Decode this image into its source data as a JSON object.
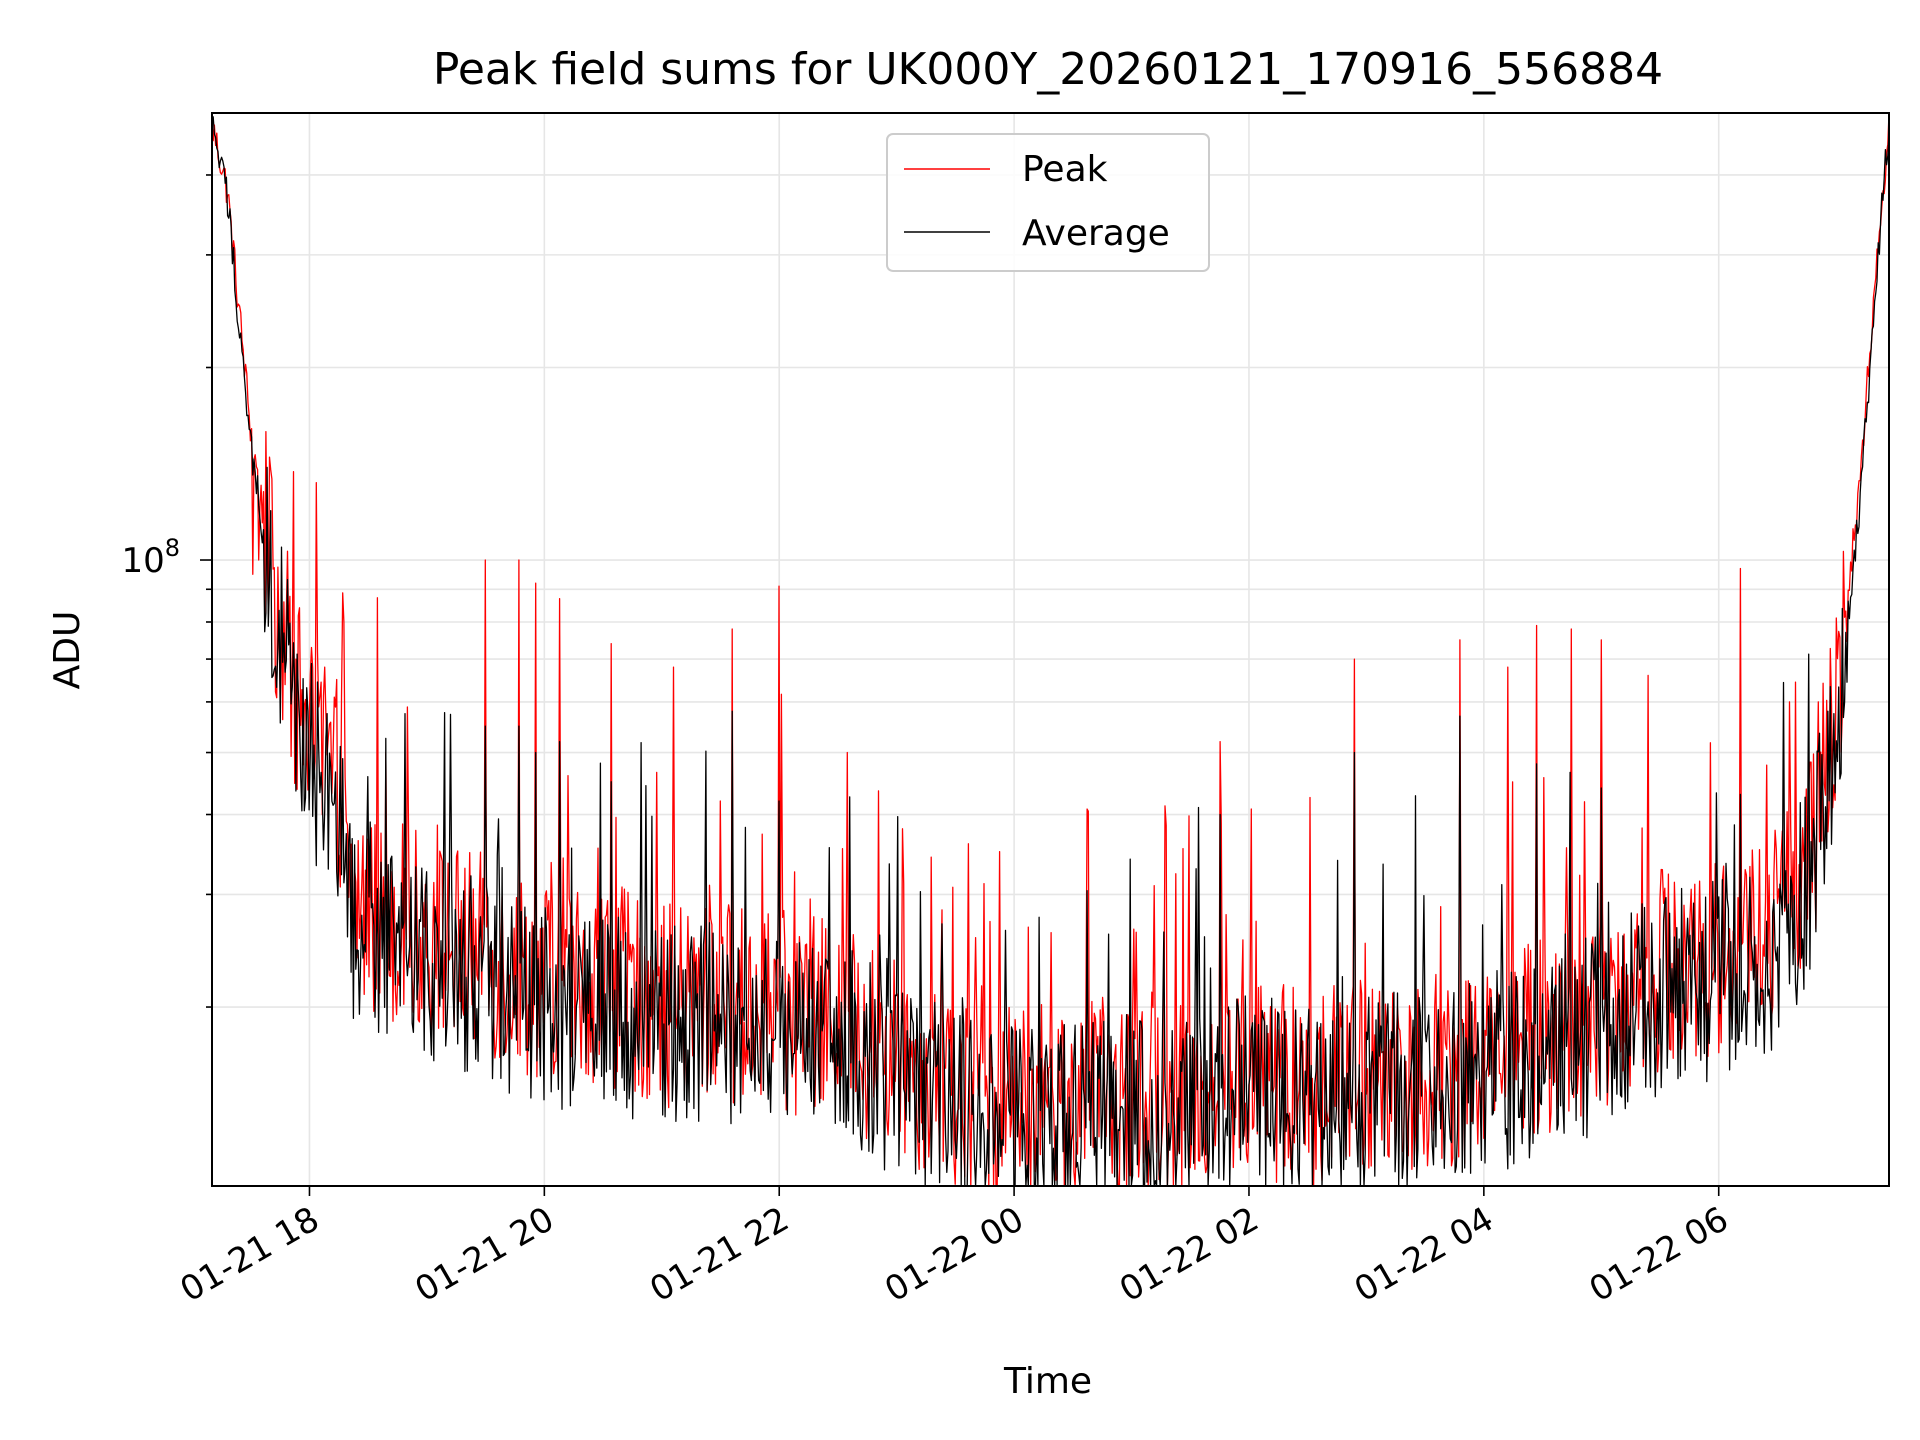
{
  "chart_data": {
    "type": "line",
    "title": "Peak field sums for UK000Y_20260121_170916_556884",
    "xlabel": "Time",
    "ylabel": "ADU",
    "yscale": "log",
    "ylim": [
      10500000,
      500000000
    ],
    "xlim_hours": [
      17.17,
      31.45
    ],
    "x_ticks": [
      {
        "label": "01-21 18",
        "hour": 18
      },
      {
        "label": "01-21 20",
        "hour": 20
      },
      {
        "label": "01-21 22",
        "hour": 22
      },
      {
        "label": "01-22 00",
        "hour": 24
      },
      {
        "label": "01-22 02",
        "hour": 26
      },
      {
        "label": "01-22 04",
        "hour": 28
      },
      {
        "label": "01-22 06",
        "hour": 30
      }
    ],
    "y_major_tick": {
      "label_base": "10",
      "label_exp": "8",
      "value": 100000000
    },
    "y_minor_ticks": [
      20000000,
      30000000,
      40000000,
      50000000,
      60000000,
      70000000,
      80000000,
      90000000,
      200000000,
      300000000,
      400000000
    ],
    "grid": true,
    "legend": {
      "position": "top-center",
      "entries": [
        {
          "label": "Peak",
          "color": "#ff0000"
        },
        {
          "label": "Average",
          "color": "#000000"
        }
      ]
    },
    "series": [
      {
        "name": "Peak",
        "color": "#ff0000",
        "baseline_points": [
          [
            17.17,
            480000000
          ],
          [
            17.3,
            380000000
          ],
          [
            17.5,
            160000000
          ],
          [
            17.7,
            90000000
          ],
          [
            17.9,
            60000000
          ],
          [
            18.1,
            48000000
          ],
          [
            18.28,
            44000000
          ],
          [
            18.32,
            30000000
          ],
          [
            18.6,
            28000000
          ],
          [
            19.0,
            26000000
          ],
          [
            19.5,
            24000000
          ],
          [
            20.0,
            22000000
          ],
          [
            20.5,
            22000000
          ],
          [
            21.0,
            20000000
          ],
          [
            21.5,
            20500000
          ],
          [
            22.0,
            19500000
          ],
          [
            22.5,
            19000000
          ],
          [
            23.0,
            17000000
          ],
          [
            23.5,
            14500000
          ],
          [
            24.0,
            14000000
          ],
          [
            24.5,
            14200000
          ],
          [
            25.0,
            14500000
          ],
          [
            25.5,
            14800000
          ],
          [
            26.0,
            15500000
          ],
          [
            26.5,
            15000000
          ],
          [
            27.0,
            15500000
          ],
          [
            27.5,
            16000000
          ],
          [
            28.0,
            16500000
          ],
          [
            28.5,
            18000000
          ],
          [
            29.0,
            20000000
          ],
          [
            29.5,
            23000000
          ],
          [
            30.0,
            24000000
          ],
          [
            30.5,
            27000000
          ],
          [
            30.8,
            35000000
          ],
          [
            31.0,
            60000000
          ],
          [
            31.2,
            130000000
          ],
          [
            31.35,
            300000000
          ],
          [
            31.45,
            480000000
          ]
        ],
        "spikes": [
          [
            17.52,
            95000000
          ],
          [
            17.57,
            100000000
          ],
          [
            17.78,
            86000000
          ],
          [
            17.88,
            70000000
          ],
          [
            18.13,
            68000000
          ],
          [
            18.29,
            80000000
          ],
          [
            18.65,
            50000000
          ],
          [
            19.5,
            100000000
          ],
          [
            19.78,
            100000000
          ],
          [
            19.93,
            92000000
          ],
          [
            20.13,
            87000000
          ],
          [
            20.2,
            46000000
          ],
          [
            20.57,
            74000000
          ],
          [
            21.1,
            68000000
          ],
          [
            21.5,
            42000000
          ],
          [
            21.6,
            78000000
          ],
          [
            22.0,
            91000000
          ],
          [
            22.58,
            50000000
          ],
          [
            23.05,
            38000000
          ],
          [
            23.88,
            35000000
          ],
          [
            25.75,
            52000000
          ],
          [
            26.9,
            70000000
          ],
          [
            27.8,
            75000000
          ],
          [
            28.2,
            68000000
          ],
          [
            28.45,
            79000000
          ],
          [
            28.75,
            78000000
          ],
          [
            29.0,
            75000000
          ],
          [
            29.4,
            66000000
          ],
          [
            30.18,
            97000000
          ],
          [
            30.6,
            60000000
          ],
          [
            30.85,
            60000000
          ]
        ]
      },
      {
        "name": "Average",
        "color": "#000000",
        "baseline_points": [
          [
            17.17,
            480000000
          ],
          [
            17.3,
            370000000
          ],
          [
            17.5,
            150000000
          ],
          [
            17.7,
            85000000
          ],
          [
            17.9,
            55000000
          ],
          [
            18.1,
            44000000
          ],
          [
            18.28,
            40000000
          ],
          [
            18.32,
            27000000
          ],
          [
            18.6,
            25000000
          ],
          [
            19.0,
            23500000
          ],
          [
            19.5,
            22000000
          ],
          [
            20.0,
            20000000
          ],
          [
            20.5,
            20000000
          ],
          [
            21.0,
            18500000
          ],
          [
            21.5,
            19000000
          ],
          [
            22.0,
            18000000
          ],
          [
            22.5,
            17500000
          ],
          [
            23.0,
            15500000
          ],
          [
            23.5,
            13500000
          ],
          [
            24.0,
            13000000
          ],
          [
            24.5,
            13300000
          ],
          [
            25.0,
            13500000
          ],
          [
            25.5,
            13800000
          ],
          [
            26.0,
            14500000
          ],
          [
            26.5,
            14000000
          ],
          [
            27.0,
            14500000
          ],
          [
            27.5,
            15000000
          ],
          [
            28.0,
            15500000
          ],
          [
            28.5,
            16500000
          ],
          [
            29.0,
            18500000
          ],
          [
            29.5,
            21000000
          ],
          [
            30.0,
            22000000
          ],
          [
            30.5,
            25000000
          ],
          [
            30.8,
            32000000
          ],
          [
            31.0,
            55000000
          ],
          [
            31.2,
            120000000
          ],
          [
            31.35,
            290000000
          ],
          [
            31.45,
            480000000
          ]
        ],
        "spikes": [
          [
            19.5,
            55000000
          ],
          [
            19.78,
            55000000
          ],
          [
            19.93,
            50000000
          ],
          [
            20.13,
            52000000
          ],
          [
            20.57,
            45000000
          ],
          [
            21.6,
            58000000
          ],
          [
            22.0,
            42000000
          ],
          [
            25.75,
            40000000
          ],
          [
            26.9,
            50000000
          ],
          [
            27.8,
            57000000
          ],
          [
            28.45,
            48000000
          ],
          [
            29.0,
            44000000
          ],
          [
            30.18,
            43000000
          ]
        ]
      }
    ]
  }
}
